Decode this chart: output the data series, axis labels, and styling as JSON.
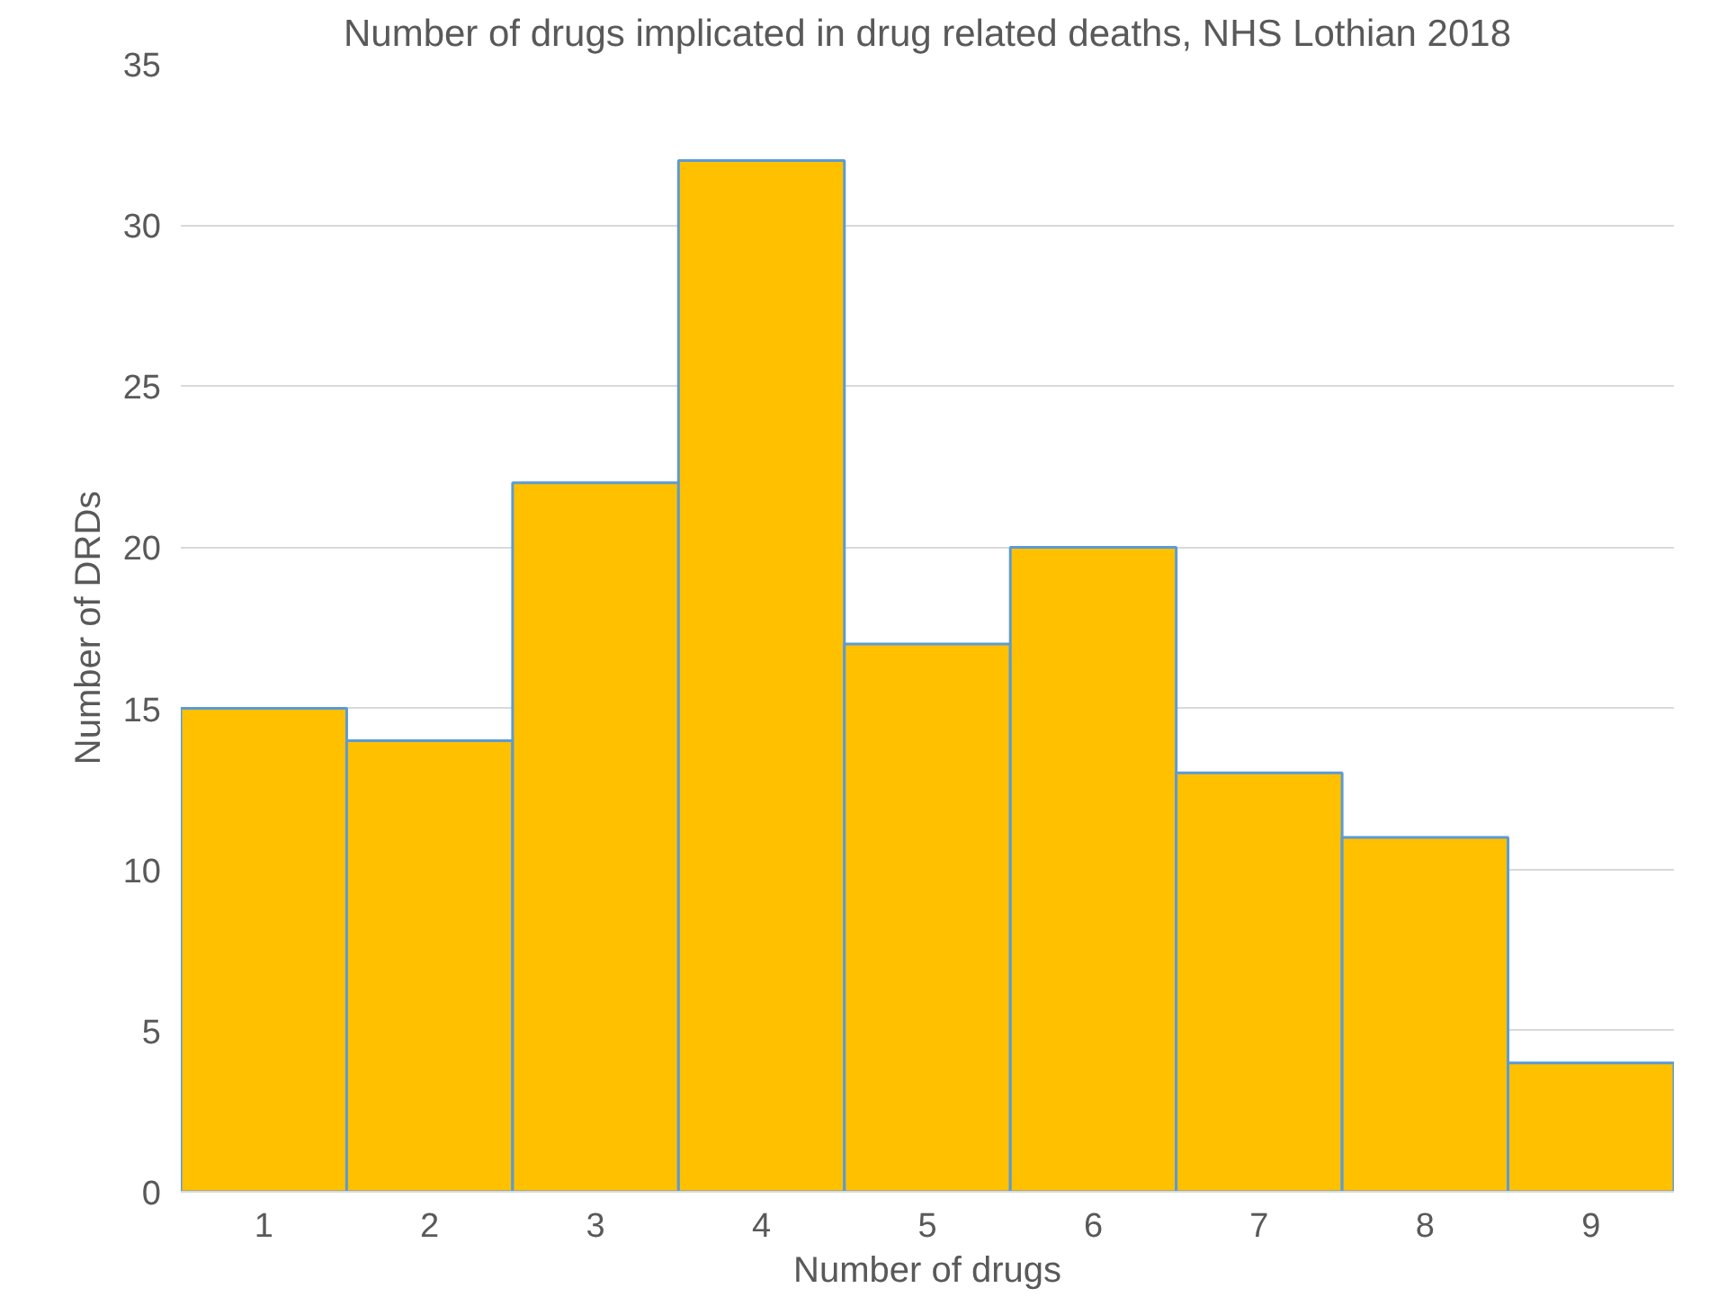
{
  "chart_data": {
    "type": "bar",
    "title": "Number of drugs implicated in drug related deaths, NHS Lothian 2018",
    "xlabel": "Number of drugs",
    "ylabel": "Number of DRDs",
    "categories": [
      "1",
      "2",
      "3",
      "4",
      "5",
      "6",
      "7",
      "8",
      "9"
    ],
    "values": [
      15,
      14,
      22,
      32,
      17,
      20,
      13,
      11,
      4
    ],
    "color": "#ffc000",
    "ylim": [
      0,
      35
    ],
    "yticks": [
      0,
      5,
      10,
      15,
      20,
      25,
      30,
      35
    ],
    "grid": "y"
  }
}
